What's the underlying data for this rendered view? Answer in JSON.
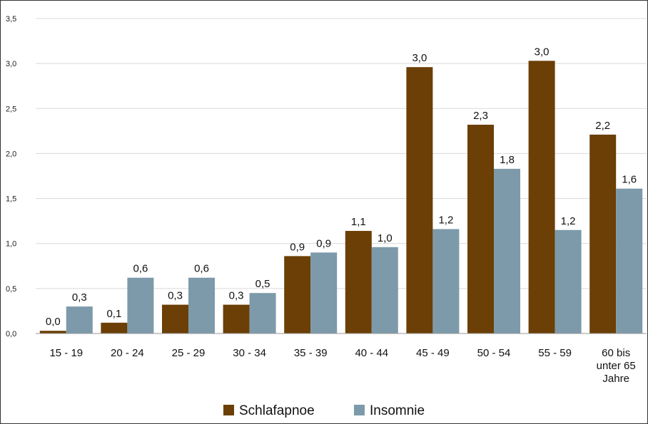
{
  "chart_data": {
    "type": "bar",
    "categories": [
      [
        "15 - 19"
      ],
      [
        "20 - 24"
      ],
      [
        "25 - 29"
      ],
      [
        "30 - 34"
      ],
      [
        "35 - 39"
      ],
      [
        "40 - 44"
      ],
      [
        "45 - 49"
      ],
      [
        "50 - 54"
      ],
      [
        "55 - 59"
      ],
      [
        "60 bis",
        "unter 65",
        "Jahre"
      ]
    ],
    "series": [
      {
        "name": "Schlafapnoe",
        "color": "#6B3F05",
        "values": [
          0.03,
          0.12,
          0.32,
          0.32,
          0.86,
          1.14,
          2.96,
          2.32,
          3.03,
          2.21
        ],
        "labels": [
          "0,0",
          "0,1",
          "0,3",
          "0,3",
          "0,9",
          "1,1",
          "3,0",
          "2,3",
          "3,0",
          "2,2"
        ]
      },
      {
        "name": "Insomnie",
        "color": "#7D9AAA",
        "values": [
          0.3,
          0.62,
          0.62,
          0.45,
          0.9,
          0.96,
          1.16,
          1.83,
          1.15,
          1.61
        ],
        "labels": [
          "0,3",
          "0,6",
          "0,6",
          "0,5",
          "0,9",
          "1,0",
          "1,2",
          "1,8",
          "1,2",
          "1,6"
        ]
      }
    ],
    "yticks": [
      "0,0",
      "0,5",
      "1,0",
      "1,5",
      "2,0",
      "2,5",
      "3,0",
      "3,5"
    ],
    "ylim": [
      0,
      3.5
    ],
    "grid": true,
    "legend": "bottom-center"
  }
}
